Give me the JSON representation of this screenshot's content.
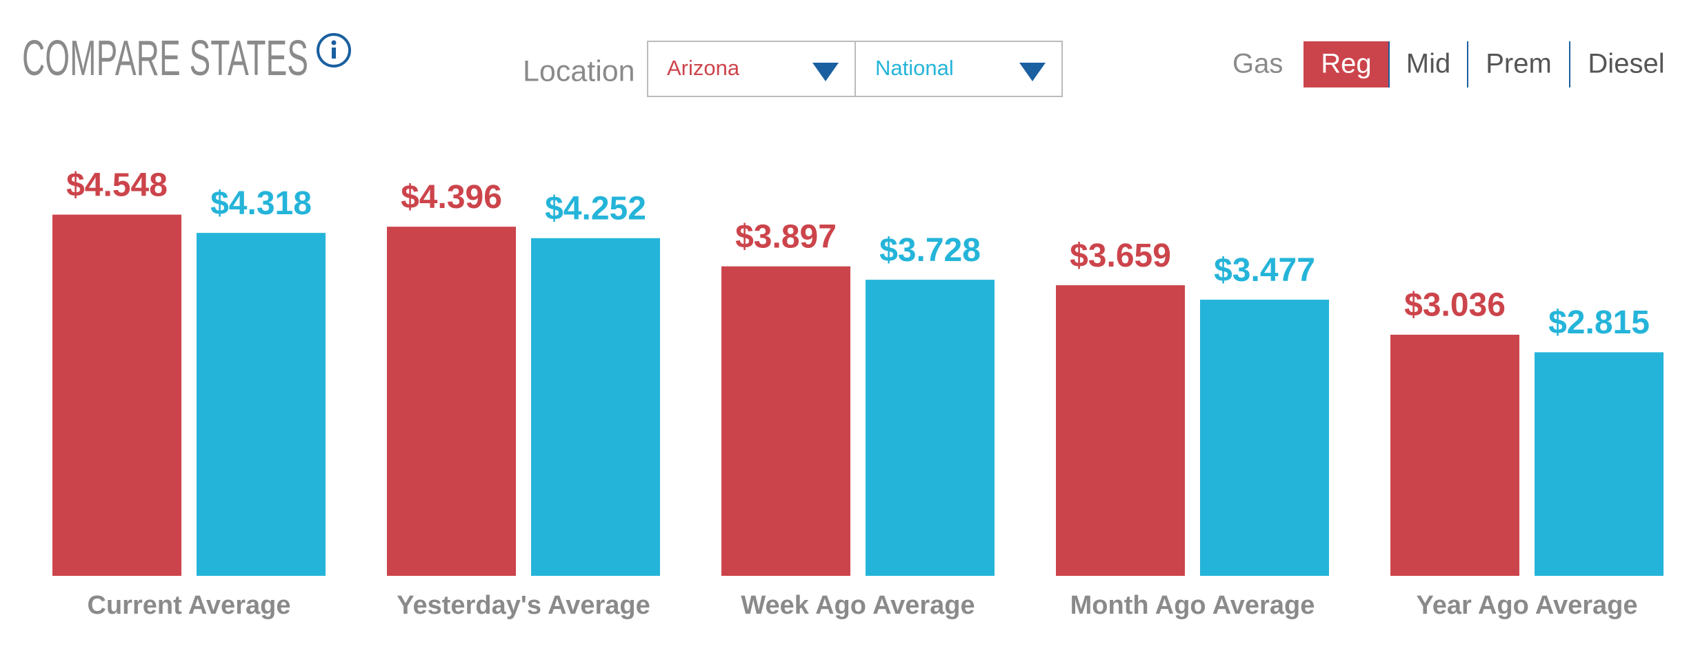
{
  "header": {
    "title": "COMPARE STATES",
    "location_label": "Location"
  },
  "fuel": {
    "label": "Gas",
    "options": [
      "Reg",
      "Mid",
      "Prem",
      "Diesel"
    ],
    "selected": 0
  },
  "chart_data": {
    "type": "bar",
    "categories": [
      "Current Average",
      "Yesterday's Average",
      "Week Ago Average",
      "Month Ago Average",
      "Year Ago Average"
    ],
    "series": [
      {
        "name": "Arizona",
        "color": "#cc444b",
        "values": [
          4.548,
          4.396,
          3.897,
          3.659,
          3.036
        ],
        "value_labels": [
          "$4.548",
          "$4.396",
          "$3.897",
          "$3.659",
          "$3.036"
        ]
      },
      {
        "name": "National",
        "color": "#25b4d9",
        "values": [
          4.318,
          4.252,
          3.728,
          3.477,
          2.815
        ],
        "value_labels": [
          "$4.318",
          "$4.252",
          "$3.728",
          "$3.477",
          "$2.815"
        ]
      }
    ]
  }
}
